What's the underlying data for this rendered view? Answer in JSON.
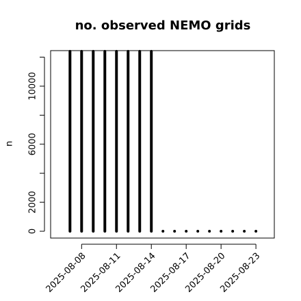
{
  "chart_data": {
    "type": "bar",
    "title": "no. observed NEMO grids",
    "y_label": "n",
    "x": [
      "2025-08-07",
      "2025-08-08",
      "2025-08-09",
      "2025-08-10",
      "2025-08-11",
      "2025-08-12",
      "2025-08-13",
      "2025-08-14",
      "2025-08-15",
      "2025-08-16",
      "2025-08-17",
      "2025-08-18",
      "2025-08-19",
      "2025-08-20",
      "2025-08-21",
      "2025-08-22",
      "2025-08-23"
    ],
    "values": [
      12400,
      12400,
      12400,
      12400,
      12400,
      12400,
      12400,
      12400,
      0,
      0,
      0,
      0,
      0,
      0,
      0,
      0,
      0
    ],
    "color": "#000000",
    "xlim": [
      "2025-08-05T08:00",
      "2025-08-24T14:00"
    ],
    "xticks": [
      "2025-08-08",
      "2025-08-11",
      "2025-08-14",
      "2025-08-17",
      "2025-08-20",
      "2025-08-23"
    ],
    "ylim": [
      -470,
      12450
    ],
    "yticks": [
      0,
      2000,
      6000,
      10000
    ],
    "yminorticks": [
      4000,
      8000,
      12000
    ]
  }
}
